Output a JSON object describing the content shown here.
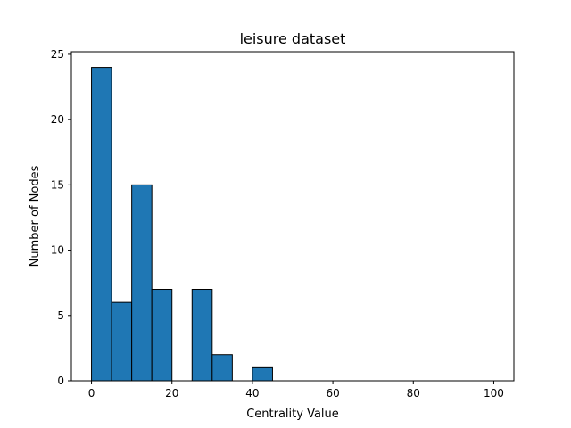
{
  "chart_data": {
    "type": "bar",
    "title": "leisure dataset",
    "xlabel": "Centrality Value",
    "ylabel": "Number of Nodes",
    "bins": [
      {
        "x0": 0,
        "x1": 5,
        "count": 24
      },
      {
        "x0": 5,
        "x1": 10,
        "count": 6
      },
      {
        "x0": 10,
        "x1": 15,
        "count": 15
      },
      {
        "x0": 15,
        "x1": 20,
        "count": 7
      },
      {
        "x0": 20,
        "x1": 25,
        "count": 0
      },
      {
        "x0": 25,
        "x1": 30,
        "count": 7
      },
      {
        "x0": 30,
        "x1": 35,
        "count": 2
      },
      {
        "x0": 35,
        "x1": 40,
        "count": 0
      },
      {
        "x0": 40,
        "x1": 45,
        "count": 1
      },
      {
        "x0": 45,
        "x1": 50,
        "count": 0
      },
      {
        "x0": 50,
        "x1": 55,
        "count": 0
      },
      {
        "x0": 55,
        "x1": 60,
        "count": 0
      },
      {
        "x0": 60,
        "x1": 65,
        "count": 0
      },
      {
        "x0": 65,
        "x1": 70,
        "count": 0
      },
      {
        "x0": 70,
        "x1": 75,
        "count": 0
      },
      {
        "x0": 75,
        "x1": 80,
        "count": 0
      },
      {
        "x0": 80,
        "x1": 85,
        "count": 0
      },
      {
        "x0": 85,
        "x1": 90,
        "count": 0
      },
      {
        "x0": 90,
        "x1": 95,
        "count": 0
      },
      {
        "x0": 95,
        "x1": 100,
        "count": 0
      }
    ],
    "xlim": [
      -5,
      105
    ],
    "ylim": [
      0,
      25.2
    ],
    "xticks": [
      0,
      20,
      40,
      60,
      80,
      100
    ],
    "yticks": [
      0,
      5,
      10,
      15,
      20,
      25
    ],
    "grid": false,
    "bar_color": "#1f77b4",
    "edge_color": "#000000"
  }
}
